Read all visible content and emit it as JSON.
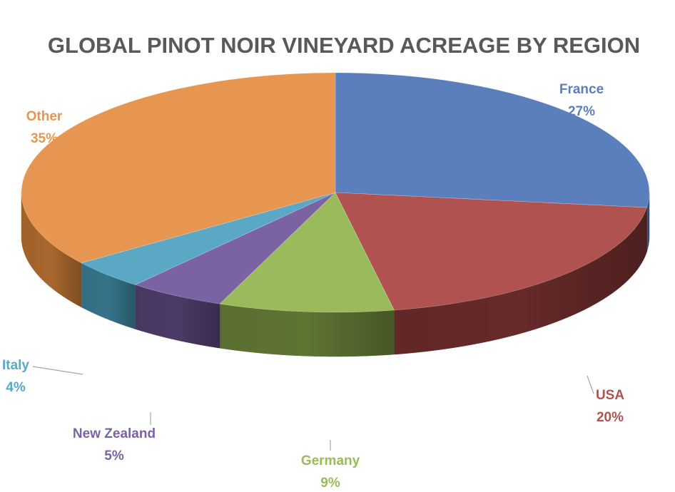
{
  "chart_data": {
    "type": "pie",
    "title": "GLOBAL PINOT NOIR VINEYARD ACREAGE BY REGION",
    "style": "3d",
    "slices": [
      {
        "label": "France",
        "value": 27,
        "display": "27%",
        "color": "#5b7fbc",
        "side_color": "#3a5585"
      },
      {
        "label": "USA",
        "value": 20,
        "display": "20%",
        "color": "#b0524f",
        "side_color": "#662a29"
      },
      {
        "label": "Germany",
        "value": 9,
        "display": "9%",
        "color": "#9bba5c",
        "side_color": "#5e7433"
      },
      {
        "label": "New Zealand",
        "value": 5,
        "display": "5%",
        "color": "#7b62a3",
        "side_color": "#4b3a66"
      },
      {
        "label": "Italy",
        "value": 4,
        "display": "4%",
        "color": "#5aa8c4",
        "side_color": "#367388"
      },
      {
        "label": "Other",
        "value": 35,
        "display": "35%",
        "color": "#e69650",
        "side_color": "#a8672d"
      }
    ],
    "legend": "none"
  }
}
